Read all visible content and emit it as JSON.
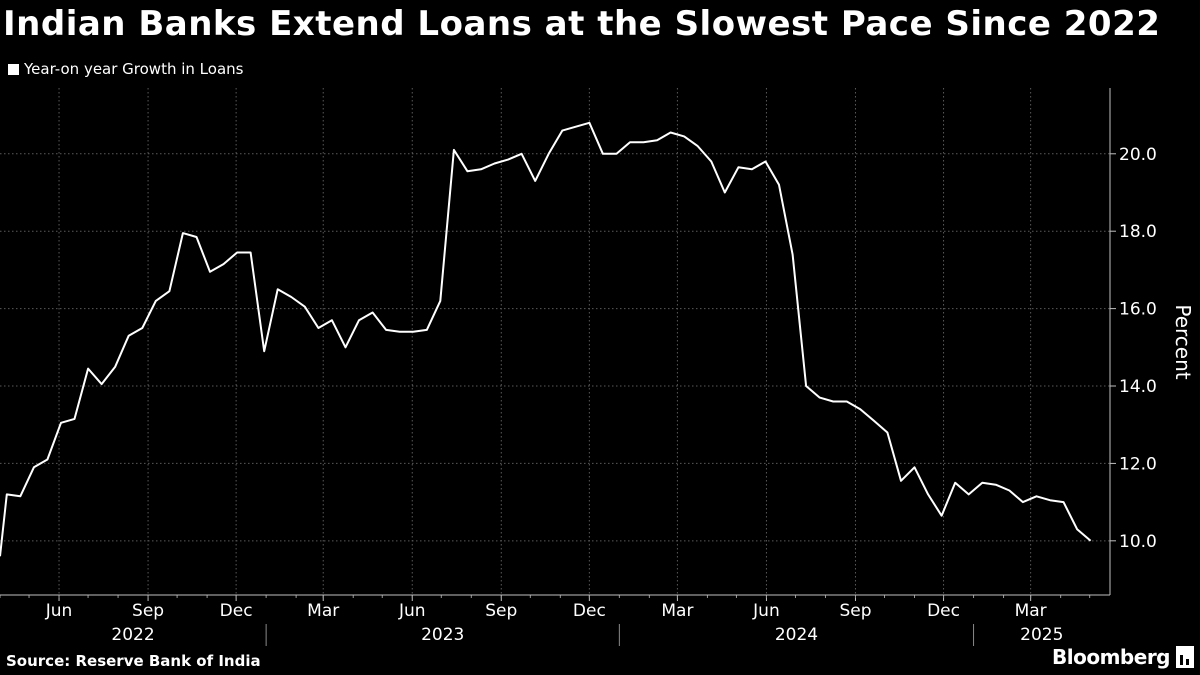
{
  "title": "Indian Banks Extend Loans at the Slowest Pace Since 2022",
  "source": "Source: Reserve Bank of India",
  "brand": "Bloomberg",
  "colors": {
    "background": "#000000",
    "line": "#ffffff",
    "grid": "#5a5a5a"
  },
  "chart_data": {
    "type": "line",
    "title": "Indian Banks Extend Loans at the Slowest Pace Since 2022",
    "ylabel": "Percent",
    "ylim": [
      8.6,
      21.7
    ],
    "yticks": [
      "10.0",
      "12.0",
      "14.0",
      "16.0",
      "18.0",
      "20.0"
    ],
    "grid": true,
    "legend": "top-left",
    "x_tick_labels": [
      {
        "date": "2022-06",
        "label": "Jun"
      },
      {
        "date": "2022-09",
        "label": "Sep"
      },
      {
        "date": "2022-12",
        "label": "Dec"
      },
      {
        "date": "2023-03",
        "label": "Mar"
      },
      {
        "date": "2023-06",
        "label": "Jun"
      },
      {
        "date": "2023-09",
        "label": "Sep"
      },
      {
        "date": "2023-12",
        "label": "Dec"
      },
      {
        "date": "2024-03",
        "label": "Mar"
      },
      {
        "date": "2024-06",
        "label": "Jun"
      },
      {
        "date": "2024-09",
        "label": "Sep"
      },
      {
        "date": "2024-12",
        "label": "Dec"
      },
      {
        "date": "2025-03",
        "label": "Mar"
      }
    ],
    "year_labels": [
      "2022",
      "2023",
      "2024",
      "2025"
    ],
    "series": [
      {
        "name": "Year-on year Growth in Loans",
        "points": [
          [
            "2022-04-01",
            9.6
          ],
          [
            "2022-04-08",
            11.2
          ],
          [
            "2022-04-22",
            11.15
          ],
          [
            "2022-05-06",
            11.9
          ],
          [
            "2022-05-20",
            12.1
          ],
          [
            "2022-06-03",
            13.05
          ],
          [
            "2022-06-17",
            13.15
          ],
          [
            "2022-07-01",
            14.45
          ],
          [
            "2022-07-15",
            14.05
          ],
          [
            "2022-07-29",
            14.5
          ],
          [
            "2022-08-12",
            15.3
          ],
          [
            "2022-08-26",
            15.5
          ],
          [
            "2022-09-09",
            16.2
          ],
          [
            "2022-09-23",
            16.45
          ],
          [
            "2022-10-07",
            17.95
          ],
          [
            "2022-10-21",
            17.85
          ],
          [
            "2022-11-04",
            16.95
          ],
          [
            "2022-11-18",
            17.15
          ],
          [
            "2022-12-02",
            17.45
          ],
          [
            "2022-12-16",
            17.45
          ],
          [
            "2022-12-30",
            14.9
          ],
          [
            "2023-01-13",
            16.5
          ],
          [
            "2023-01-27",
            16.3
          ],
          [
            "2023-02-10",
            16.05
          ],
          [
            "2023-02-24",
            15.5
          ],
          [
            "2023-03-10",
            15.7
          ],
          [
            "2023-03-24",
            15.0
          ],
          [
            "2023-04-07",
            15.7
          ],
          [
            "2023-04-21",
            15.9
          ],
          [
            "2023-05-05",
            15.45
          ],
          [
            "2023-05-19",
            15.4
          ],
          [
            "2023-06-02",
            15.4
          ],
          [
            "2023-06-16",
            15.45
          ],
          [
            "2023-06-30",
            16.2
          ],
          [
            "2023-07-14",
            20.1
          ],
          [
            "2023-07-28",
            19.55
          ],
          [
            "2023-08-11",
            19.6
          ],
          [
            "2023-08-25",
            19.75
          ],
          [
            "2023-09-08",
            19.85
          ],
          [
            "2023-09-22",
            20.0
          ],
          [
            "2023-10-06",
            19.3
          ],
          [
            "2023-10-20",
            20.0
          ],
          [
            "2023-11-03",
            20.6
          ],
          [
            "2023-11-17",
            20.7
          ],
          [
            "2023-12-01",
            20.8
          ],
          [
            "2023-12-15",
            20.0
          ],
          [
            "2023-12-29",
            20.0
          ],
          [
            "2024-01-12",
            20.3
          ],
          [
            "2024-01-26",
            20.3
          ],
          [
            "2024-02-09",
            20.35
          ],
          [
            "2024-02-23",
            20.55
          ],
          [
            "2024-03-08",
            20.45
          ],
          [
            "2024-03-22",
            20.2
          ],
          [
            "2024-04-05",
            19.8
          ],
          [
            "2024-04-19",
            19.0
          ],
          [
            "2024-05-03",
            19.65
          ],
          [
            "2024-05-17",
            19.6
          ],
          [
            "2024-05-31",
            19.8
          ],
          [
            "2024-06-14",
            19.2
          ],
          [
            "2024-06-28",
            17.4
          ],
          [
            "2024-07-12",
            14.0
          ],
          [
            "2024-07-26",
            13.7
          ],
          [
            "2024-08-09",
            13.6
          ],
          [
            "2024-08-23",
            13.6
          ],
          [
            "2024-09-06",
            13.4
          ],
          [
            "2024-09-20",
            13.1
          ],
          [
            "2024-10-04",
            12.8
          ],
          [
            "2024-10-18",
            11.55
          ],
          [
            "2024-11-01",
            11.9
          ],
          [
            "2024-11-15",
            11.2
          ],
          [
            "2024-11-29",
            10.65
          ],
          [
            "2024-12-13",
            11.5
          ],
          [
            "2024-12-27",
            11.2
          ],
          [
            "2025-01-10",
            11.5
          ],
          [
            "2025-01-24",
            11.45
          ],
          [
            "2025-02-07",
            11.3
          ],
          [
            "2025-02-21",
            11.0
          ],
          [
            "2025-03-07",
            11.15
          ],
          [
            "2025-03-21",
            11.05
          ],
          [
            "2025-04-04",
            11.0
          ],
          [
            "2025-04-18",
            10.3
          ],
          [
            "2025-05-02",
            10.0
          ]
        ]
      }
    ]
  }
}
